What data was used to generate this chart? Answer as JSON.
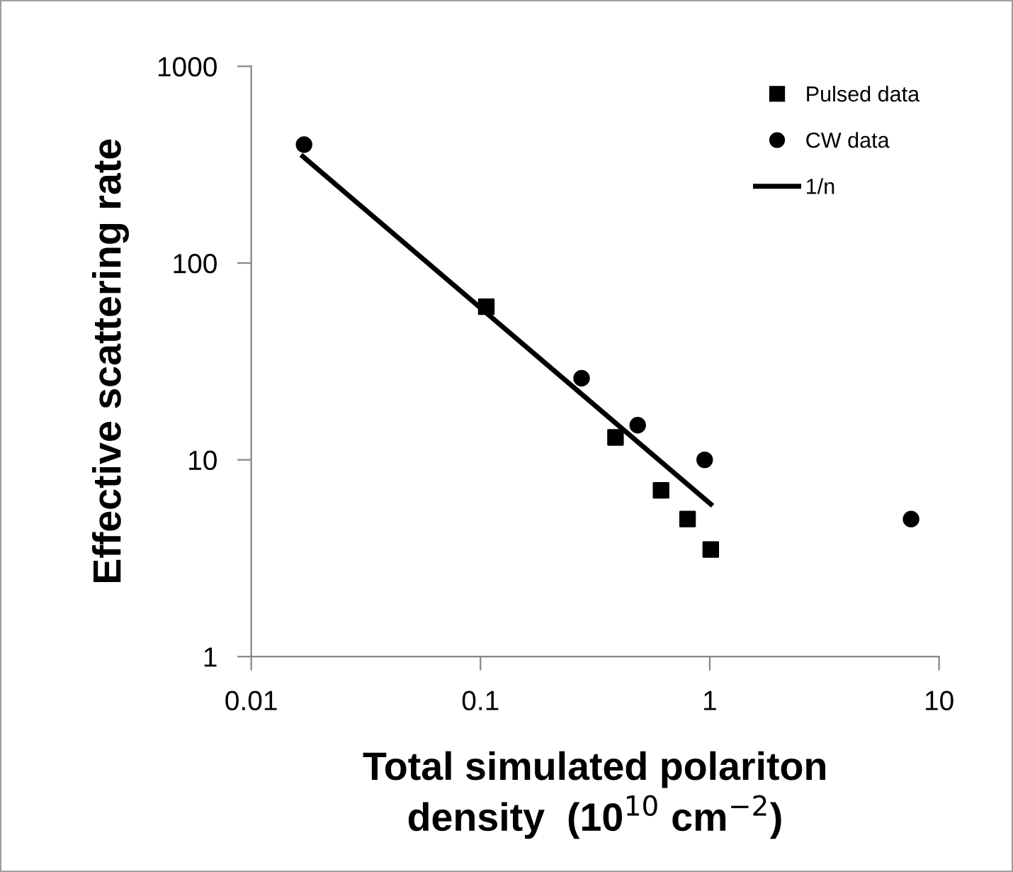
{
  "chart_data": {
    "type": "scatter",
    "xlabel": "Total simulated polariton\ndensity  (10$^{10}$ cm$^{−2}$)",
    "ylabel": "Effective scattering rate",
    "series": [
      {
        "name": "Pulsed data",
        "color": "#000000",
        "marker": "square",
        "x": [
          0.106,
          0.388,
          0.613,
          0.8,
          1.01
        ],
        "values": [
          60,
          13,
          7,
          5,
          3.5
        ]
      },
      {
        "name": "CW data",
        "color": "#000000",
        "marker": "circle",
        "x": [
          0.017,
          0.276,
          0.485,
          0.95,
          7.55
        ],
        "values": [
          400,
          26,
          15,
          10,
          5
        ]
      },
      {
        "name": "1/n",
        "type": "line",
        "color": "#000000",
        "marker": "none",
        "line_style": "solid",
        "x": [
          0.0168,
          1.01
        ],
        "values": [
          348,
          5.95
        ]
      }
    ],
    "log": "xy",
    "xlim": [
      0.01,
      10
    ],
    "xticks": [
      0.01,
      0.1,
      1,
      10
    ],
    "ylim": [
      1,
      1000
    ],
    "yticks": [
      1,
      10,
      100,
      1000
    ],
    "grid": false,
    "legend": "top right"
  }
}
